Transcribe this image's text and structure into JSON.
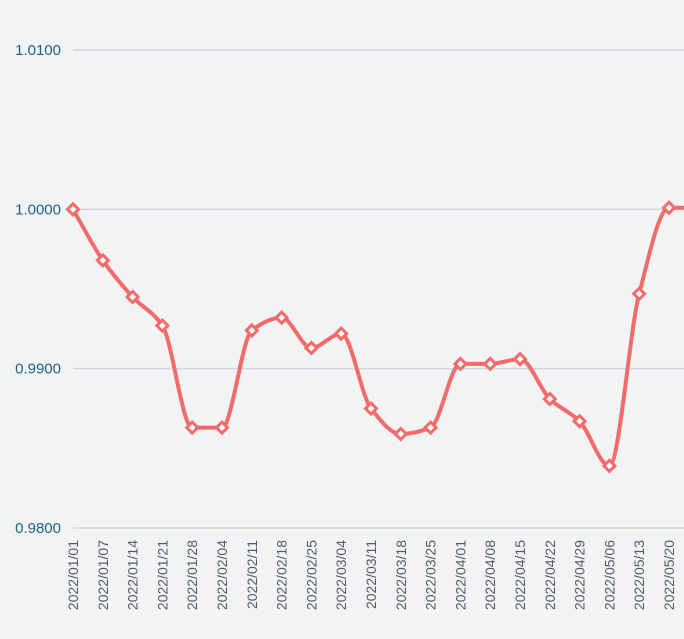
{
  "chart_data": {
    "type": "line",
    "title": "",
    "xlabel": "",
    "ylabel": "",
    "x": [
      "2022/01/01",
      "2022/01/07",
      "2022/01/14",
      "2022/01/21",
      "2022/01/28",
      "2022/02/04",
      "2022/02/11",
      "2022/02/18",
      "2022/02/25",
      "2022/03/04",
      "2022/03/11",
      "2022/03/18",
      "2022/03/25",
      "2022/04/01",
      "2022/04/08",
      "2022/04/15",
      "2022/04/22",
      "2022/04/29",
      "2022/05/06",
      "2022/05/13",
      "2022/05/20"
    ],
    "y_ticks": [
      "0.9800",
      "0.9900",
      "1.0000",
      "1.0100"
    ],
    "ylim": [
      0.98,
      1.01
    ],
    "grid": true,
    "series": [
      {
        "values": [
          1.0,
          0.9968,
          0.9945,
          0.9927,
          0.9863,
          0.9863,
          0.9924,
          0.9932,
          0.9913,
          0.9922,
          0.9875,
          0.9859,
          0.9863,
          0.9903,
          0.9903,
          0.9906,
          0.9881,
          0.9867,
          0.9839,
          0.9947,
          1.0001
        ],
        "trailing_value": 1.0001,
        "color": "#f26b6b",
        "marker": "diamond"
      }
    ]
  }
}
